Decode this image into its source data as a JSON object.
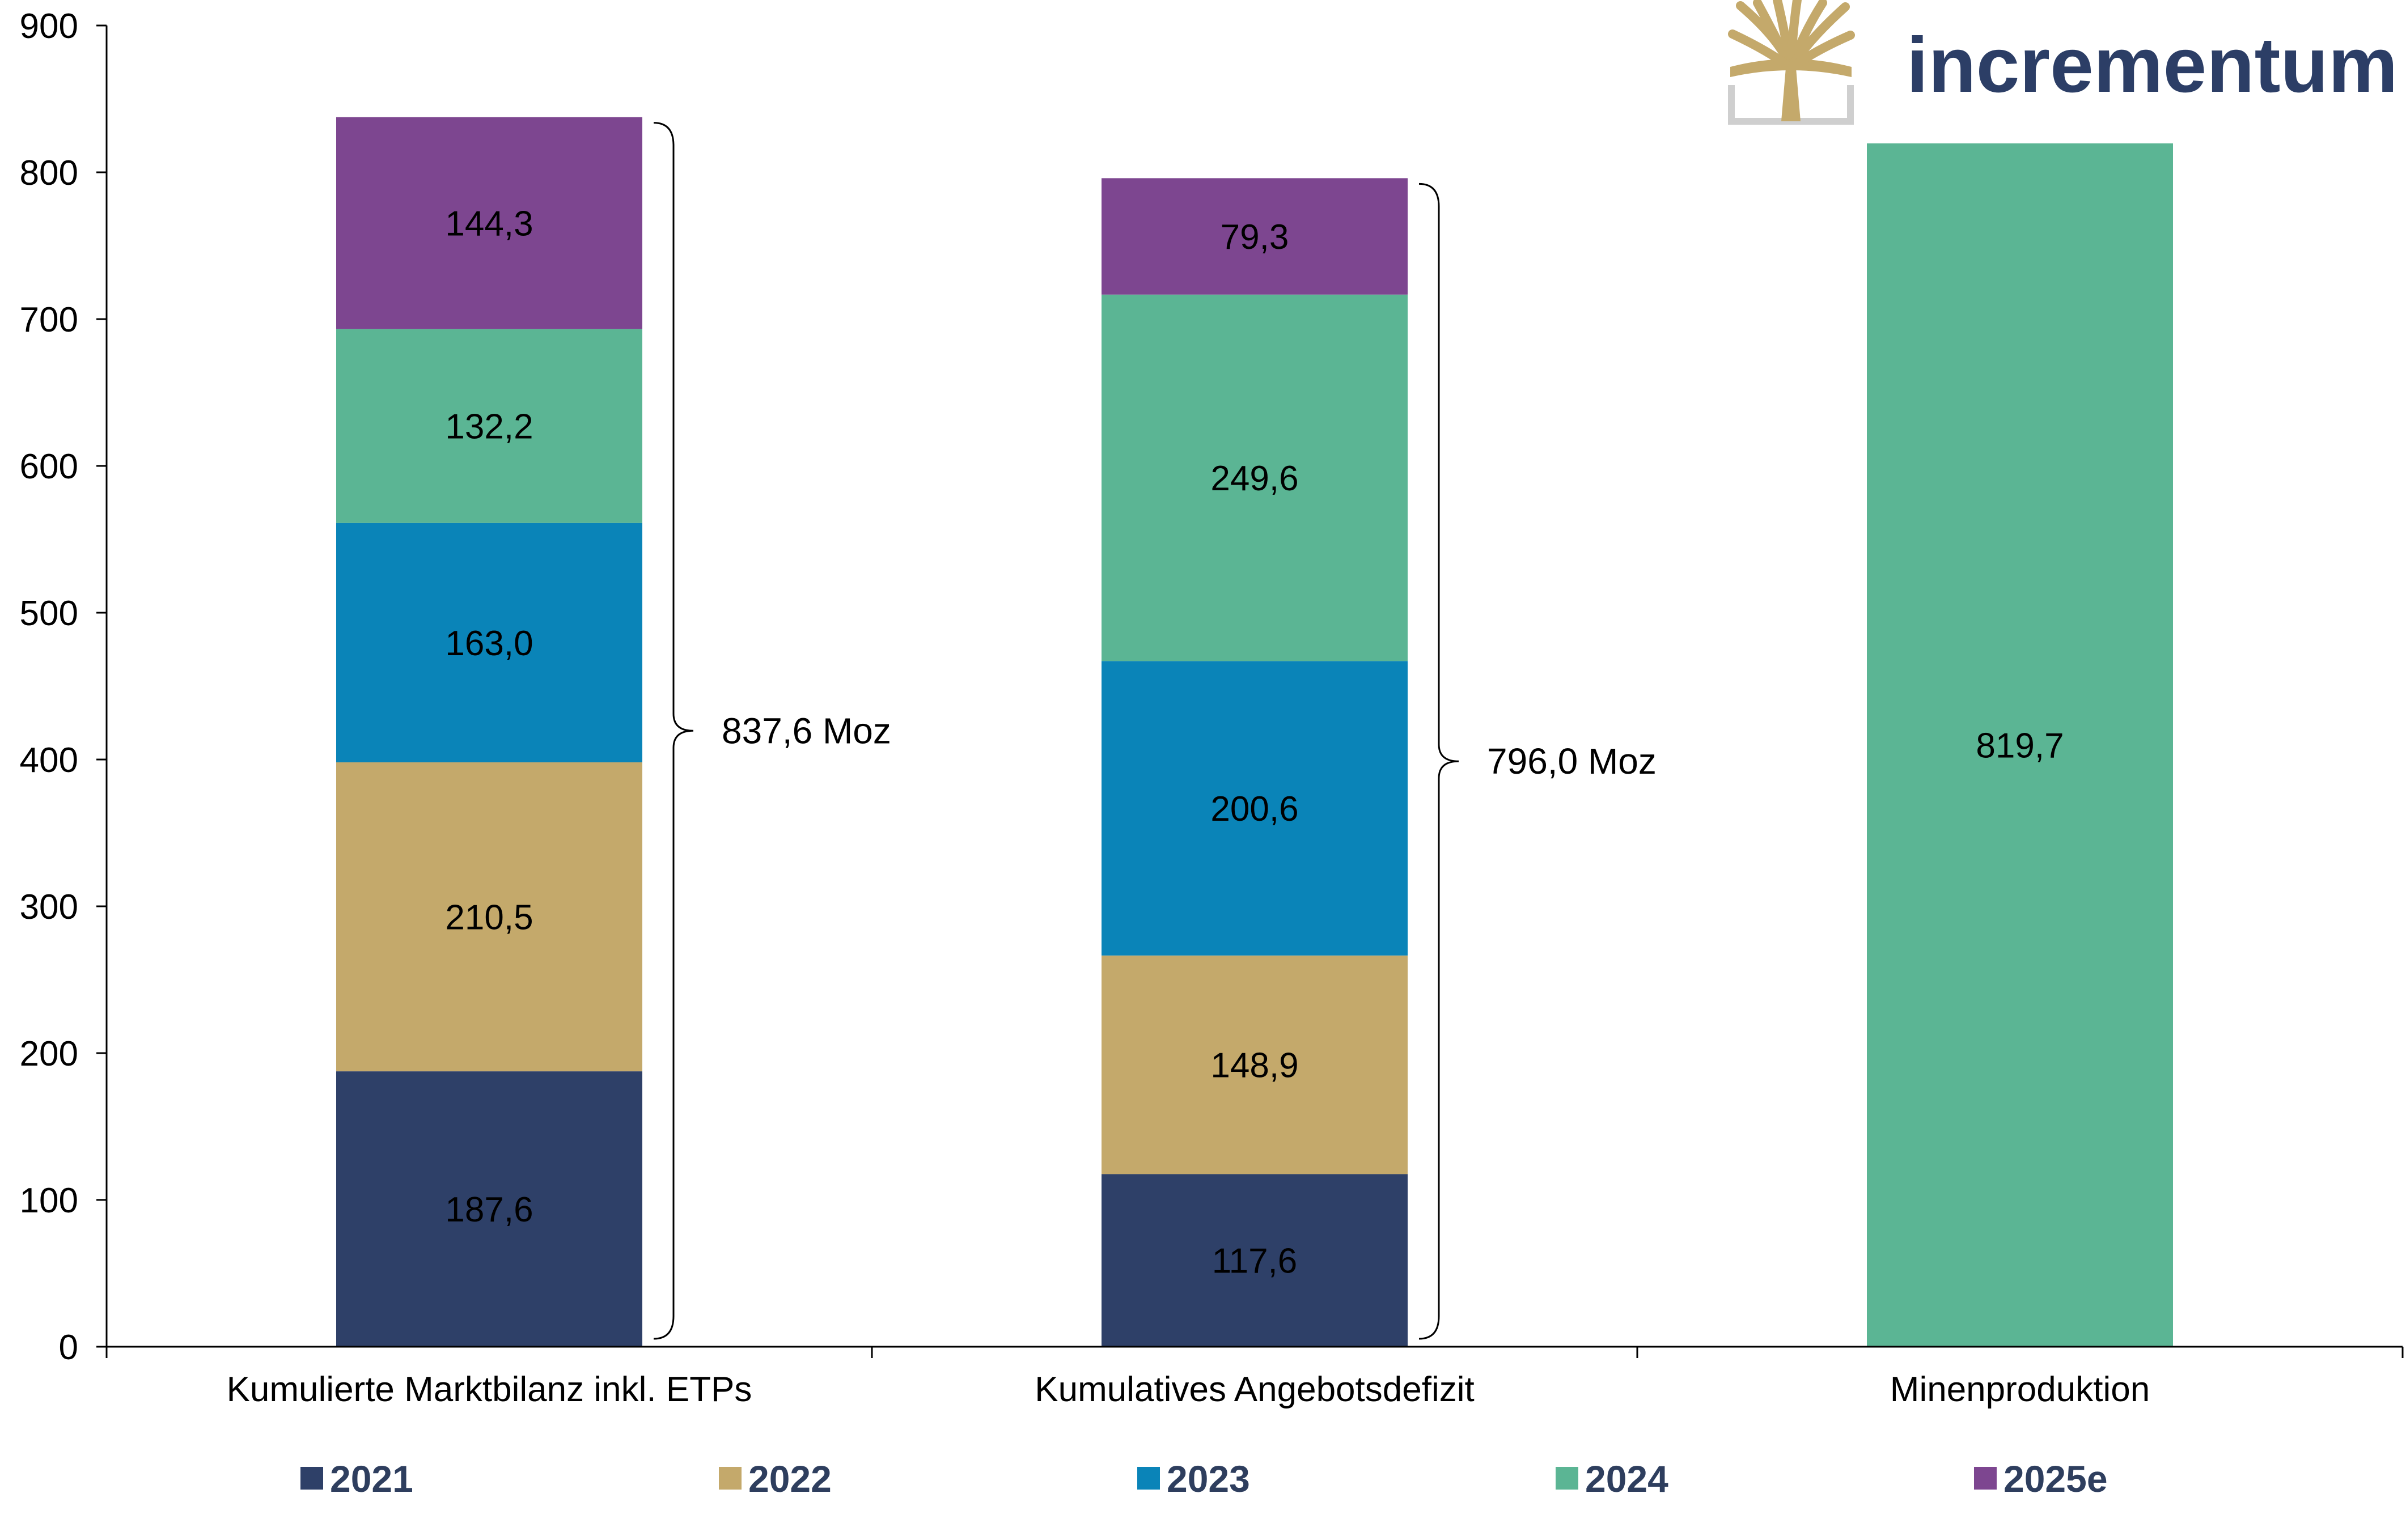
{
  "brand": {
    "name": "incrementum",
    "text_color": "#2c3e66",
    "icon": "tree-logo-icon",
    "icon_color": "#c4a96b"
  },
  "chart_data": {
    "type": "bar",
    "stacked": true,
    "categories": [
      "Kumulierte Marktbilanz inkl. ETPs",
      "Kumulatives Angebotsdefizit",
      "Minenproduktion"
    ],
    "series": [
      {
        "name": "2021",
        "color": "#2e4068",
        "values": [
          187.6,
          117.6,
          null
        ],
        "labels": [
          "187,6",
          "117,6",
          ""
        ]
      },
      {
        "name": "2022",
        "color": "#c4a96b",
        "values": [
          210.5,
          148.9,
          null
        ],
        "labels": [
          "210,5",
          "148,9",
          ""
        ]
      },
      {
        "name": "2023",
        "color": "#0a84b8",
        "values": [
          163.0,
          200.6,
          null
        ],
        "labels": [
          "163,0",
          "200,6",
          ""
        ]
      },
      {
        "name": "2024",
        "color": "#5bb594",
        "values": [
          132.2,
          249.6,
          819.7
        ],
        "labels": [
          "132,2",
          "249,6",
          "819,7"
        ]
      },
      {
        "name": "2025e",
        "color": "#7d4690",
        "values": [
          144.3,
          79.3,
          null
        ],
        "labels": [
          "144,3",
          "79,3",
          ""
        ]
      }
    ],
    "totals": [
      {
        "category": "Kumulierte Marktbilanz inkl. ETPs",
        "value": 837.6,
        "label": "837,6 Moz"
      },
      {
        "category": "Kumulatives Angebotsdefizit",
        "value": 796.0,
        "label": "796,0 Moz"
      }
    ],
    "title": "",
    "xlabel": "",
    "ylabel": "",
    "ylim": [
      0,
      900
    ],
    "yticks": [
      0,
      100,
      200,
      300,
      400,
      500,
      600,
      700,
      800,
      900
    ],
    "ytick_labels": [
      "0",
      "100",
      "200",
      "300",
      "400",
      "500",
      "600",
      "700",
      "800",
      "900"
    ],
    "grid": false,
    "legend_position": "bottom"
  }
}
